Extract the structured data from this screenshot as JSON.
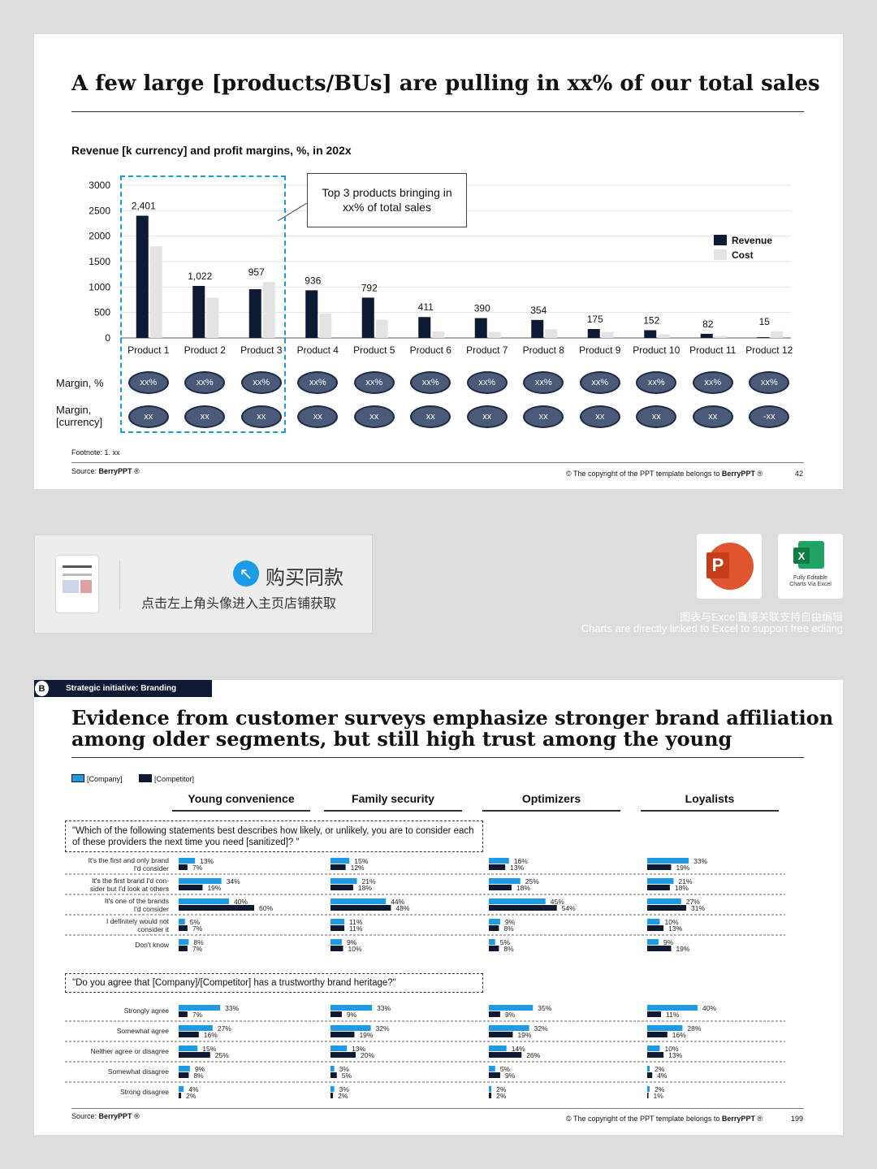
{
  "slide1": {
    "title": "A few large [products/BUs] are pulling in xx% of our total sales",
    "subtitle": "Revenue [k currency] and profit margins, %, in 202x",
    "callout": "Top 3 products bringing in xx% of total sales",
    "margin_pct_label": "Margin, %",
    "margin_cur_label_1": "Margin,",
    "margin_cur_label_2": "[currency]",
    "margin_pct_values": [
      "xx%",
      "xx%",
      "xx%",
      "xx%",
      "xx%",
      "xx%",
      "xx%",
      "xx%",
      "xx%",
      "xx%",
      "xx%",
      "xx%"
    ],
    "margin_cur_values": [
      "xx",
      "xx",
      "xx",
      "xx",
      "xx",
      "xx",
      "xx",
      "xx",
      "xx",
      "xx",
      "xx",
      "-xx"
    ],
    "footnote": "Footnote: 1. xx",
    "source_prefix": "Source: ",
    "source_brand": "BerryPPT",
    "copyright_prefix": "© The copyright of the PPT template belongs to ",
    "copyright_brand": "BerryPPT",
    "page": "42"
  },
  "promo": {
    "buy_title": "购买同款",
    "buy_sub": "点击左上角头像进入主页店铺获取",
    "excel_caption_1": "Fully Editable",
    "excel_caption_2": "Charts Via Excel",
    "cn_caption": "图表与Excel直接关联支持自由编辑",
    "en_caption": "Charts are directly linked to Excel to support free editing",
    "icons": [
      "powerpoint-icon",
      "excel-icon",
      "arrow-up-left-icon",
      "thumbnail"
    ]
  },
  "slide2": {
    "badge_letter": "B",
    "badge_text": "Strategic initiative: Branding",
    "title_line1": "Evidence from customer surveys emphasize stronger brand affiliation",
    "title_line2": "among older segments, but still high trust among the young",
    "legend_company": "[Company]",
    "legend_competitor": "[Competitor]",
    "segments": [
      "Young convenience",
      "Family security",
      "Optimizers",
      "Loyalists"
    ],
    "q1": "\"Which of the following statements best describes how likely, or unlikely, you are to consider each of these providers the next time you need [sanitized]? \"",
    "q2": "\"Do you agree that [Company]/[Competitor] has a trustworthy brand heritage?\"",
    "source_prefix": "Source: ",
    "source_brand": "BerryPPT",
    "copyright_prefix": "© The copyright of the PPT template belongs to ",
    "copyright_brand": "BerryPPT",
    "page": "199"
  },
  "colors": {
    "revenue": "#0e1a33",
    "cost": "#e3e3e3",
    "company": "#1f9be6",
    "competitor": "#0e1a33",
    "highlight_box": "#1a9ad9",
    "oval": "#4a5a78"
  },
  "chart_data": [
    {
      "type": "bar",
      "title": "Revenue [k currency] and profit margins, %, in 202x",
      "categories": [
        "Product 1",
        "Product 2",
        "Product 3",
        "Product 4",
        "Product 5",
        "Product 6",
        "Product 7",
        "Product 8",
        "Product 9",
        "Product 10",
        "Product 11",
        "Product 12"
      ],
      "series": [
        {
          "name": "Revenue",
          "values": [
            2401,
            1022,
            957,
            936,
            792,
            411,
            390,
            354,
            175,
            152,
            82,
            15
          ]
        },
        {
          "name": "Cost",
          "values": [
            1800,
            790,
            1100,
            480,
            360,
            130,
            120,
            170,
            120,
            70,
            40,
            130
          ]
        }
      ],
      "data_labels": [
        "2,401",
        "1,022",
        "957",
        "936",
        "792",
        "411",
        "390",
        "354",
        "175",
        "152",
        "82",
        "15"
      ],
      "yticks": [
        "0",
        "500",
        "1000",
        "1500",
        "2000",
        "2500",
        "3000"
      ],
      "ylim": [
        0,
        3000
      ],
      "grid": true,
      "legend": "top-right"
    },
    {
      "type": "bar",
      "orientation": "horizontal",
      "title": "\"Which of the following statements best describes how likely, or unlikely, you are to consider each of these providers the next time you need [sanitized]? \"",
      "row_labels": [
        [
          "It's the first and only brand",
          "I'd consider"
        ],
        [
          "It's the first brand I'd con-",
          "sider but I'd look at others"
        ],
        [
          "It's one of the brands",
          "I'd consider"
        ],
        [
          "I definitely would not",
          "consider it"
        ],
        [
          "Don't know"
        ]
      ],
      "segments": [
        {
          "name": "Young convenience",
          "company": [
            13,
            34,
            40,
            5,
            8
          ],
          "competitor": [
            7,
            19,
            60,
            7,
            7
          ]
        },
        {
          "name": "Family security",
          "company": [
            15,
            21,
            44,
            11,
            9
          ],
          "competitor": [
            12,
            18,
            48,
            11,
            10
          ]
        },
        {
          "name": "Optimizers",
          "company": [
            16,
            25,
            45,
            9,
            5
          ],
          "competitor": [
            13,
            18,
            54,
            8,
            8
          ]
        },
        {
          "name": "Loyalists",
          "company": [
            33,
            21,
            27,
            10,
            9
          ],
          "competitor": [
            19,
            18,
            31,
            13,
            19
          ]
        }
      ],
      "unit": "%"
    },
    {
      "type": "bar",
      "orientation": "horizontal",
      "title": "\"Do you agree that [Company]/[Competitor] has a trustworthy brand heritage?\"",
      "row_labels": [
        [
          "Strongly agree"
        ],
        [
          "Somewhat agree"
        ],
        [
          "Neither agree or disagree"
        ],
        [
          "Somewhat disagree"
        ],
        [
          "Strong disagree"
        ]
      ],
      "segments": [
        {
          "name": "Young convenience",
          "company": [
            33,
            27,
            15,
            9,
            4
          ],
          "competitor": [
            7,
            16,
            25,
            8,
            2
          ]
        },
        {
          "name": "Family security",
          "company": [
            33,
            32,
            13,
            3,
            3
          ],
          "competitor": [
            9,
            19,
            20,
            5,
            2
          ]
        },
        {
          "name": "Optimizers",
          "company": [
            35,
            32,
            14,
            5,
            2
          ],
          "competitor": [
            9,
            19,
            26,
            9,
            2
          ]
        },
        {
          "name": "Loyalists",
          "company": [
            40,
            28,
            10,
            2,
            2
          ],
          "competitor": [
            11,
            16,
            13,
            4,
            1
          ]
        }
      ],
      "unit": "%"
    }
  ]
}
